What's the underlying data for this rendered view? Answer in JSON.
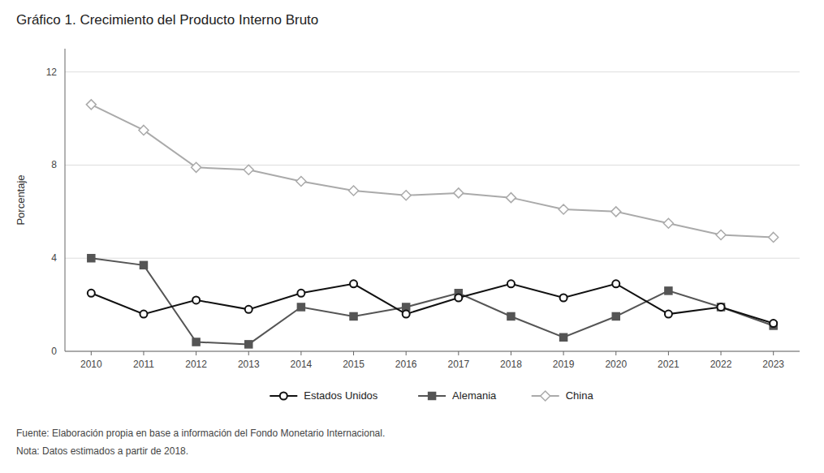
{
  "chart_data": {
    "type": "line",
    "title": "Gráfico 1.  Crecimiento del Producto Interno Bruto",
    "ylabel": "Porcentaje",
    "x": [
      2010,
      2011,
      2012,
      2013,
      2014,
      2015,
      2016,
      2017,
      2018,
      2019,
      2020,
      2021,
      2022,
      2023
    ],
    "xlim": [
      2009.5,
      2023.5
    ],
    "xticks": [
      2010,
      2011,
      2012,
      2013,
      2014,
      2015,
      2016,
      2017,
      2018,
      2019,
      2020,
      2021,
      2022,
      2023
    ],
    "ylim": [
      0,
      13
    ],
    "yticks": [
      0,
      4,
      8,
      12
    ],
    "grid": true,
    "legend": "bottom",
    "series": [
      {
        "name": "Estados Unidos",
        "color": "#111111",
        "marker": "circle",
        "values": [
          2.5,
          1.6,
          2.2,
          1.8,
          2.5,
          2.9,
          1.6,
          2.3,
          2.9,
          2.3,
          2.9,
          1.6,
          1.9,
          1.2
        ]
      },
      {
        "name": "Alemania",
        "color": "#555555",
        "marker": "square",
        "values": [
          4.0,
          3.7,
          0.4,
          0.3,
          1.9,
          1.5,
          1.9,
          2.5,
          1.5,
          0.6,
          1.5,
          2.6,
          1.9,
          1.1
        ]
      },
      {
        "name": "China",
        "color": "#aaaaaa",
        "marker": "diamond",
        "values": [
          10.6,
          9.5,
          7.9,
          7.8,
          7.3,
          6.9,
          6.7,
          6.8,
          6.6,
          6.1,
          6.0,
          5.5,
          5.0,
          4.9
        ]
      }
    ],
    "footnotes": [
      "Fuente: Elaboración propia en base a información del Fondo Monetario Internacional.",
      "Nota: Datos estimados a partir de 2018."
    ]
  }
}
